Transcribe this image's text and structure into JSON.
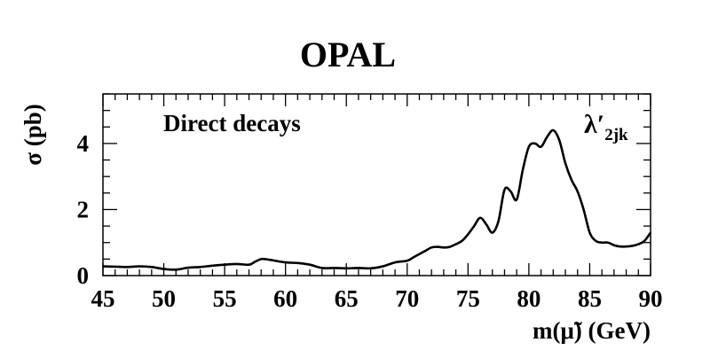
{
  "chart_data": {
    "type": "line",
    "title": "OPAL",
    "annotation": "Direct decays",
    "coupling_label": {
      "base": "λ′",
      "subscript": "2jk"
    },
    "ylabel": "σ (pb)",
    "xlabel": "m(μ̃) (GeV)",
    "xlim": [
      45,
      90
    ],
    "ylim": [
      0,
      5.5
    ],
    "xticks": [
      45,
      50,
      55,
      60,
      65,
      70,
      75,
      80,
      85,
      90
    ],
    "yticks": [
      0,
      2,
      4
    ],
    "grid": false,
    "series": [
      {
        "x": [
          45,
          46,
          47,
          48,
          49,
          50,
          51,
          52,
          53,
          54,
          55,
          56,
          57,
          57.5,
          58,
          58.5,
          59,
          60,
          61,
          62,
          63,
          64,
          65,
          66,
          67,
          68,
          69,
          70,
          70.5,
          71,
          71.5,
          72,
          72.5,
          73,
          73.5,
          74,
          74.5,
          75,
          75.5,
          76,
          76.5,
          77,
          77.5,
          78,
          78.5,
          79,
          79.5,
          80,
          80.5,
          81,
          81.5,
          82,
          82.5,
          83,
          83.5,
          84,
          84.5,
          85,
          85.5,
          86,
          86.5,
          87,
          87.5,
          88,
          88.5,
          89,
          89.5,
          90
        ],
        "y": [
          0.28,
          0.27,
          0.26,
          0.28,
          0.26,
          0.2,
          0.18,
          0.24,
          0.26,
          0.3,
          0.33,
          0.35,
          0.33,
          0.42,
          0.5,
          0.49,
          0.46,
          0.4,
          0.38,
          0.33,
          0.23,
          0.23,
          0.22,
          0.23,
          0.22,
          0.28,
          0.4,
          0.45,
          0.55,
          0.65,
          0.75,
          0.85,
          0.87,
          0.85,
          0.87,
          0.95,
          1.05,
          1.25,
          1.5,
          1.75,
          1.55,
          1.3,
          1.65,
          2.6,
          2.55,
          2.3,
          3.2,
          3.9,
          4.0,
          3.9,
          4.2,
          4.4,
          4.1,
          3.4,
          2.9,
          2.55,
          2.0,
          1.3,
          1.05,
          1.0,
          1.0,
          0.92,
          0.88,
          0.88,
          0.9,
          0.95,
          1.05,
          1.3
        ]
      }
    ]
  }
}
